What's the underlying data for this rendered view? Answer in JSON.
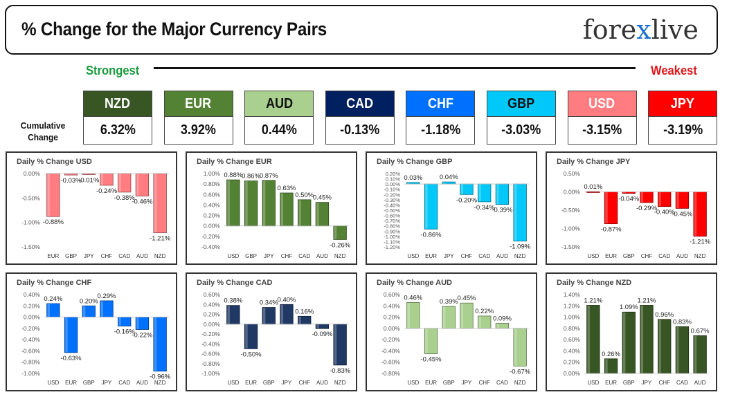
{
  "header": {
    "title": "% Change for the Major Currency Pairs",
    "logo": {
      "text_a": "fore",
      "text_x": "x",
      "text_b": "live"
    }
  },
  "ranking": {
    "strongest_label": "Strongest",
    "weakest_label": "Weakest",
    "cumulative_label_1": "Cumulative",
    "cumulative_label_2": "Change"
  },
  "tiles": [
    {
      "code": "NZD",
      "value": "6.32%",
      "bg": "#375623",
      "fg": "#ffffff"
    },
    {
      "code": "EUR",
      "value": "3.92%",
      "bg": "#548235",
      "fg": "#ffffff"
    },
    {
      "code": "AUD",
      "value": "0.44%",
      "bg": "#a9d08e",
      "fg": "#111111"
    },
    {
      "code": "CAD",
      "value": "-0.13%",
      "bg": "#002060",
      "fg": "#ffffff"
    },
    {
      "code": "CHF",
      "value": "-1.18%",
      "bg": "#0070ff",
      "fg": "#ffffff"
    },
    {
      "code": "GBP",
      "value": "-3.03%",
      "bg": "#00c8f8",
      "fg": "#111111"
    },
    {
      "code": "USD",
      "value": "-3.15%",
      "bg": "#ff7c80",
      "fg": "#ffffff"
    },
    {
      "code": "JPY",
      "value": "-3.19%",
      "bg": "#ff0000",
      "fg": "#ffffff"
    }
  ],
  "chart_data": [
    {
      "type": "bar",
      "title": "Daily % Change USD",
      "color": "#ff7c80",
      "categories": [
        "EUR",
        "GBP",
        "JPY",
        "CHF",
        "CAD",
        "AUD",
        "NZD"
      ],
      "values": [
        -0.88,
        -0.03,
        -0.01,
        -0.24,
        -0.38,
        -0.46,
        -1.21
      ],
      "labels": [
        "-0.88%",
        "-0.03%",
        "-0.01%",
        "-0.24%",
        "-0.38%",
        "-0.46%",
        "-1.21%"
      ],
      "ylim": [
        -1.5,
        0
      ],
      "ticks": [
        0,
        -0.5,
        -1.0,
        -1.5
      ],
      "tick_labels": [
        "0.00%",
        "-0.50%",
        "-1.00%",
        "-1.50%"
      ],
      "grid": false
    },
    {
      "type": "bar",
      "title": "Daily % Change EUR",
      "color": "#548235",
      "categories": [
        "USD",
        "GBP",
        "JPY",
        "CHF",
        "CAD",
        "AUD",
        "NZD"
      ],
      "values": [
        0.88,
        0.86,
        0.87,
        0.63,
        0.5,
        0.45,
        -0.26
      ],
      "labels": [
        "0.88%",
        "0.86%",
        "0.87%",
        "0.63%",
        "0.50%",
        "0.45%",
        "-0.26%"
      ],
      "ylim": [
        -0.4,
        1.0
      ],
      "ticks": [
        1.0,
        0.8,
        0.6,
        0.4,
        0.2,
        0,
        -0.2,
        -0.4
      ],
      "tick_labels": [
        "1.00%",
        "0.80%",
        "0.60%",
        "0.40%",
        "0.20%",
        "0.00%",
        "-0.20%",
        "-0.40%"
      ],
      "grid": false
    },
    {
      "type": "bar",
      "title": "Daily % Change GBP",
      "color": "#00c8f8",
      "categories": [
        "USD",
        "EUR",
        "JPY",
        "CHF",
        "CAD",
        "AUD",
        "NZD"
      ],
      "values": [
        0.03,
        -0.86,
        0.04,
        -0.2,
        -0.34,
        -0.39,
        -1.09
      ],
      "labels": [
        "0.03%",
        "-0.86%",
        "0.04%",
        "-0.20%",
        "-0.34%",
        "-0.39%",
        "-1.09%"
      ],
      "ylim": [
        -1.2,
        0.2
      ],
      "ticks": [
        0.2,
        0.1,
        0,
        -0.1,
        -0.2,
        -0.3,
        -0.4,
        -0.5,
        -0.6,
        -0.7,
        -0.8,
        -0.9,
        -1.0,
        -1.1,
        -1.2
      ],
      "tick_labels": [
        "0.20%",
        "0.10%",
        "0.00%",
        "-0.10%",
        "-0.20%",
        "-0.30%",
        "-0.40%",
        "-0.50%",
        "-0.60%",
        "-0.70%",
        "-0.80%",
        "-0.90%",
        "-1.00%",
        "-1.10%",
        "-1.20%"
      ],
      "grid": false
    },
    {
      "type": "bar",
      "title": "Daily % Change JPY",
      "color": "#ff0000",
      "categories": [
        "USD",
        "EUR",
        "GBP",
        "CHF",
        "CAD",
        "AUD",
        "NZD"
      ],
      "values": [
        0.01,
        -0.87,
        -0.04,
        -0.29,
        -0.4,
        -0.45,
        -1.21
      ],
      "labels": [
        "0.01%",
        "-0.87%",
        "-0.04%",
        "-0.29%",
        "-0.40%",
        "-0.45%",
        "-1.21%"
      ],
      "ylim": [
        -1.5,
        0.5
      ],
      "ticks": [
        0.5,
        0,
        -0.5,
        -1.0,
        -1.5
      ],
      "tick_labels": [
        "0.50%",
        "0.00%",
        "-0.50%",
        "-1.00%",
        "-1.50%"
      ],
      "grid": false
    },
    {
      "type": "bar",
      "title": "Daily % Change CHF",
      "color": "#0070ff",
      "categories": [
        "USD",
        "EUR",
        "GBP",
        "JPY",
        "CAD",
        "AUD",
        "NZD"
      ],
      "values": [
        0.24,
        -0.63,
        0.2,
        0.29,
        -0.16,
        -0.22,
        -0.96
      ],
      "labels": [
        "0.24%",
        "-0.63%",
        "0.20%",
        "0.29%",
        "-0.16%",
        "-0.22%",
        "-0.96%"
      ],
      "ylim": [
        -1.0,
        0.4
      ],
      "ticks": [
        0.4,
        0.2,
        0,
        -0.2,
        -0.4,
        -0.6,
        -0.8,
        -1.0
      ],
      "tick_labels": [
        "0.40%",
        "0.20%",
        "0.00%",
        "-0.20%",
        "-0.40%",
        "-0.60%",
        "-0.80%",
        "-1.00%"
      ],
      "grid": false
    },
    {
      "type": "bar",
      "title": "Daily % Change CAD",
      "color": "#1f3864",
      "categories": [
        "USD",
        "EUR",
        "GBP",
        "JPY",
        "CHF",
        "AUD",
        "NZD"
      ],
      "values": [
        0.38,
        -0.5,
        0.34,
        0.4,
        0.16,
        -0.09,
        -0.83
      ],
      "labels": [
        "0.38%",
        "-0.50%",
        "0.34%",
        "0.40%",
        "0.16%",
        "-0.09%",
        "-0.83%"
      ],
      "ylim": [
        -1.0,
        0.6
      ],
      "ticks": [
        0.6,
        0.4,
        0.2,
        0,
        -0.2,
        -0.4,
        -0.6,
        -0.8,
        -1.0
      ],
      "tick_labels": [
        "0.60%",
        "0.40%",
        "0.20%",
        "0.00%",
        "-0.20%",
        "-0.40%",
        "-0.60%",
        "-0.80%",
        "-1.00%"
      ],
      "grid": false
    },
    {
      "type": "bar",
      "title": "Daily % Change AUD",
      "color": "#a9d08e",
      "categories": [
        "USD",
        "EUR",
        "GBP",
        "JPY",
        "CHF",
        "CAD",
        "NZD"
      ],
      "values": [
        0.46,
        -0.45,
        0.39,
        0.45,
        0.22,
        0.09,
        -0.67
      ],
      "labels": [
        "0.46%",
        "-0.45%",
        "0.39%",
        "0.45%",
        "0.22%",
        "0.09%",
        "-0.67%"
      ],
      "ylim": [
        -0.8,
        0.6
      ],
      "ticks": [
        0.6,
        0.4,
        0.2,
        0,
        -0.2,
        -0.4,
        -0.6,
        -0.8
      ],
      "tick_labels": [
        "0.60%",
        "0.40%",
        "0.20%",
        "0.00%",
        "-0.20%",
        "-0.40%",
        "-0.60%",
        "-0.80%"
      ],
      "grid": false
    },
    {
      "type": "bar",
      "title": "Daily % Change NZD",
      "color": "#375623",
      "categories": [
        "USD",
        "EUR",
        "GBP",
        "JPY",
        "CHF",
        "CAD",
        "AUD"
      ],
      "values": [
        1.21,
        0.26,
        1.09,
        1.21,
        0.96,
        0.83,
        0.67
      ],
      "labels": [
        "1.21%",
        "0.26%",
        "1.09%",
        "1.21%",
        "0.96%",
        "0.83%",
        "0.67%"
      ],
      "ylim": [
        0,
        1.4
      ],
      "ticks": [
        1.4,
        1.2,
        1.0,
        0.8,
        0.6,
        0.4,
        0.2,
        0
      ],
      "tick_labels": [
        "1.40%",
        "1.20%",
        "1.00%",
        "0.80%",
        "0.60%",
        "0.40%",
        "0.20%",
        "0.00%"
      ],
      "grid": false
    }
  ]
}
